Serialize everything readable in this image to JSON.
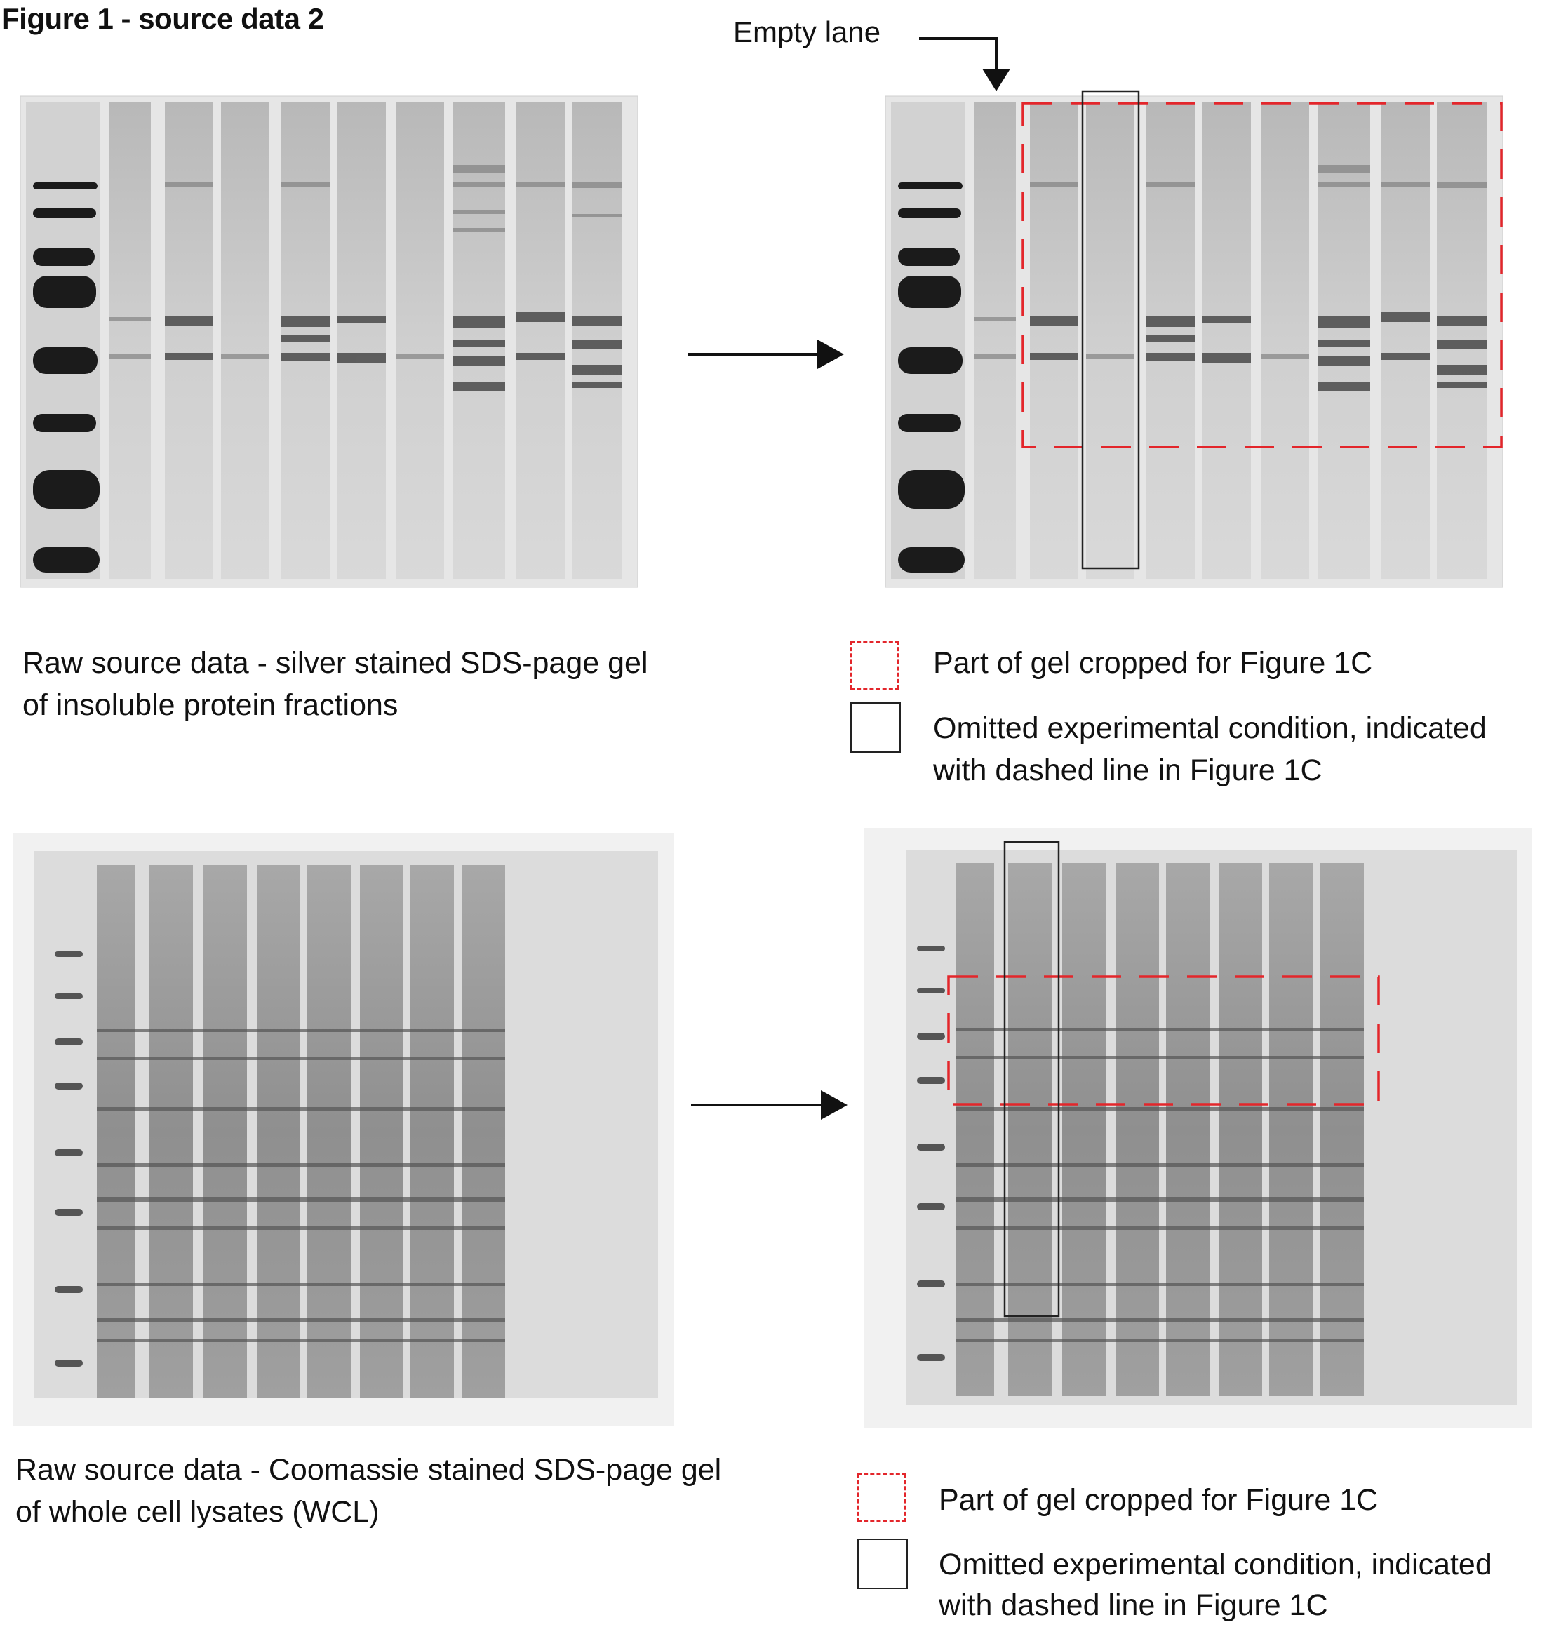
{
  "figure_title": "Figure 1 - source data 2",
  "top_panel": {
    "empty_lane_label": "Empty lane",
    "caption_line1": "Raw source data - silver stained SDS-page gel",
    "caption_line2": "of insoluble protein fractions",
    "legend": {
      "cropped_label": "Part of gel cropped for Figure 1C",
      "omitted_line1": "Omitted experimental condition, indicated",
      "omitted_line2": "with dashed line in Figure 1C"
    }
  },
  "bottom_panel": {
    "caption_line1": "Raw source data - Coomassie stained SDS-page gel",
    "caption_line2": "of whole cell lysates (WCL)",
    "legend": {
      "cropped_label": "Part of gel cropped for Figure 1C",
      "omitted_line1": "Omitted experimental condition, indicated",
      "omitted_line2": "with dashed line in Figure 1C"
    }
  },
  "colors": {
    "crop_box": "#e3262b",
    "omit_box": "#222222",
    "silver_gel_bg": "#e4e4e4",
    "coomassie_gel_bg": "#e0e0e0"
  }
}
